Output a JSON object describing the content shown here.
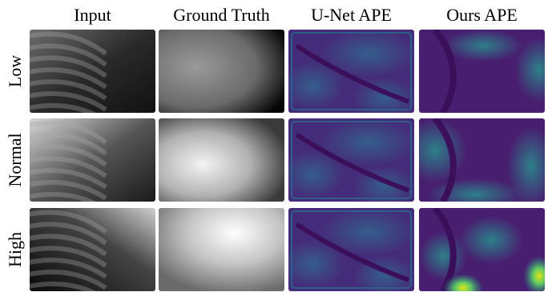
{
  "figure": {
    "columns": [
      "Input",
      "Ground Truth",
      "U-Net APE",
      "Ours APE"
    ],
    "rows": [
      "Low",
      "Normal",
      "High"
    ]
  }
}
